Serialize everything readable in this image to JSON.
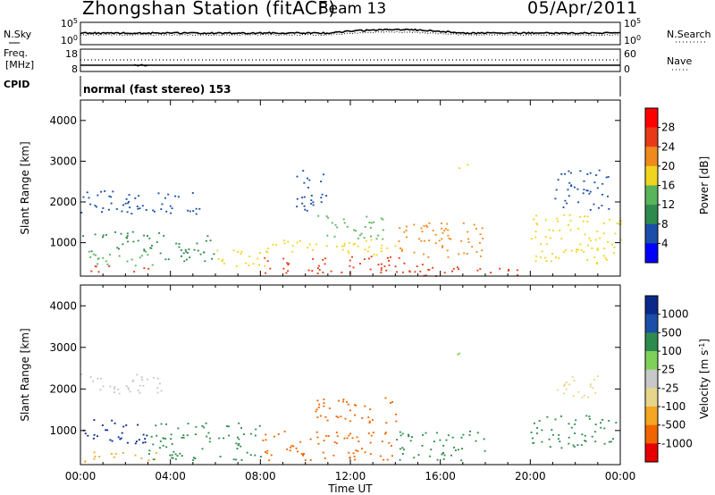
{
  "header": {
    "station": "Zhongshan Station (fitACF)",
    "beam": "Beam 13",
    "date": "05/Apr/2011"
  },
  "panels": {
    "nsky": {
      "label": "N.Sky",
      "ticks": [
        "10^5",
        "10^0"
      ]
    },
    "nsearch": {
      "label": "N.Search",
      "ticks": [
        "10^5",
        "10^0"
      ]
    },
    "freq": {
      "label_line1": "Freq.",
      "label_line2": "[MHz]",
      "ticks": [
        "18",
        "8"
      ]
    },
    "nave": {
      "label": "Nave",
      "ticks": [
        "60",
        "0"
      ]
    },
    "cpid": {
      "label": "CPID",
      "mode": "normal (fast stereo) 153"
    }
  },
  "colors": {
    "power_scale": [
      "#0000ff",
      "#1b4ea8",
      "#2f8a4e",
      "#59b45a",
      "#f0d51f",
      "#f08a1d",
      "#e83a16",
      "#ff0000"
    ],
    "velocity_scale": [
      "#e60000",
      "#f06500",
      "#f5a623",
      "#e6d68a",
      "#c8c8c8",
      "#7fd05a",
      "#2f8a4e",
      "#1b4ea8",
      "#0a2a8a"
    ]
  },
  "chart_data": [
    {
      "type": "heatmap",
      "name": "power",
      "xlabel": "Time UT",
      "ylabel": "Slant Range [km]",
      "x_ticks": [
        "00:00",
        "04:00",
        "08:00",
        "12:00",
        "16:00",
        "20:00",
        "00:00"
      ],
      "y_ticks": [
        1000,
        2000,
        3000,
        4000
      ],
      "ylim": [
        180,
        4500
      ],
      "xlim_hours": [
        0,
        24
      ],
      "colorbar": {
        "label": "Power [dB]",
        "ticks": [
          4,
          8,
          12,
          16,
          20,
          24,
          28
        ],
        "range": [
          0,
          30
        ]
      },
      "regions": [
        {
          "t": [
            0.0,
            3.3
          ],
          "r": [
            300,
            450
          ],
          "level": 27
        },
        {
          "t": [
            0.0,
            3.5
          ],
          "r": [
            450,
            800
          ],
          "level": 12
        },
        {
          "t": [
            0.0,
            3.5
          ],
          "r": [
            800,
            1300
          ],
          "level": 10
        },
        {
          "t": [
            0.0,
            5.5
          ],
          "r": [
            1700,
            2300
          ],
          "level": 5
        },
        {
          "t": [
            3.5,
            6.0
          ],
          "r": [
            500,
            1200
          ],
          "level": 9
        },
        {
          "t": [
            6.0,
            8.2
          ],
          "r": [
            400,
            900
          ],
          "level": 18
        },
        {
          "t": [
            8.0,
            15.5
          ],
          "r": [
            250,
            700
          ],
          "level": 27
        },
        {
          "t": [
            8.0,
            14.0
          ],
          "r": [
            700,
            1100
          ],
          "level": 17
        },
        {
          "t": [
            9.5,
            11.0
          ],
          "r": [
            1800,
            2800
          ],
          "level": 5
        },
        {
          "t": [
            10.5,
            13.5
          ],
          "r": [
            1100,
            1700
          ],
          "level": 14
        },
        {
          "t": [
            14.0,
            18.0
          ],
          "r": [
            600,
            1500
          ],
          "level": 22
        },
        {
          "t": [
            16.5,
            17.2
          ],
          "r": [
            2800,
            2950
          ],
          "level": 18
        },
        {
          "t": [
            15.0,
            19.5
          ],
          "r": [
            200,
            450
          ],
          "level": 25
        },
        {
          "t": [
            20.0,
            24.0
          ],
          "r": [
            500,
            1700
          ],
          "level": 18
        },
        {
          "t": [
            21.0,
            23.5
          ],
          "r": [
            1800,
            2800
          ],
          "level": 6
        }
      ]
    },
    {
      "type": "heatmap",
      "name": "velocity",
      "xlabel": "Time UT",
      "ylabel": "Slant Range [km]",
      "x_ticks": [
        "00:00",
        "04:00",
        "08:00",
        "12:00",
        "16:00",
        "20:00",
        "00:00"
      ],
      "y_ticks": [
        1000,
        2000,
        3000,
        4000
      ],
      "ylim": [
        180,
        4500
      ],
      "xlim_hours": [
        0,
        24
      ],
      "colorbar": {
        "label": "Velocity [m s^-1]",
        "ticks": [
          1000,
          500,
          100,
          25,
          -25,
          -100,
          -500,
          -1000
        ]
      },
      "regions": [
        {
          "t": [
            0.0,
            3.0
          ],
          "r": [
            700,
            1300
          ],
          "level": 8
        },
        {
          "t": [
            0.0,
            3.5
          ],
          "r": [
            250,
            500
          ],
          "level": 2
        },
        {
          "t": [
            0.0,
            4.0
          ],
          "r": [
            1900,
            2400
          ],
          "level": 4
        },
        {
          "t": [
            3.0,
            8.0
          ],
          "r": [
            300,
            1200
          ],
          "level": 6
        },
        {
          "t": [
            8.0,
            14.0
          ],
          "r": [
            300,
            1000
          ],
          "level": 1
        },
        {
          "t": [
            10.0,
            14.0
          ],
          "r": [
            1200,
            1800
          ],
          "level": 1
        },
        {
          "t": [
            14.0,
            18.0
          ],
          "r": [
            300,
            1000
          ],
          "level": 6
        },
        {
          "t": [
            16.5,
            17.2
          ],
          "r": [
            2800,
            2950
          ],
          "level": 5
        },
        {
          "t": [
            20.0,
            24.0
          ],
          "r": [
            600,
            1400
          ],
          "level": 6
        },
        {
          "t": [
            21.0,
            23.0
          ],
          "r": [
            1800,
            2400
          ],
          "level": 3
        }
      ]
    }
  ]
}
